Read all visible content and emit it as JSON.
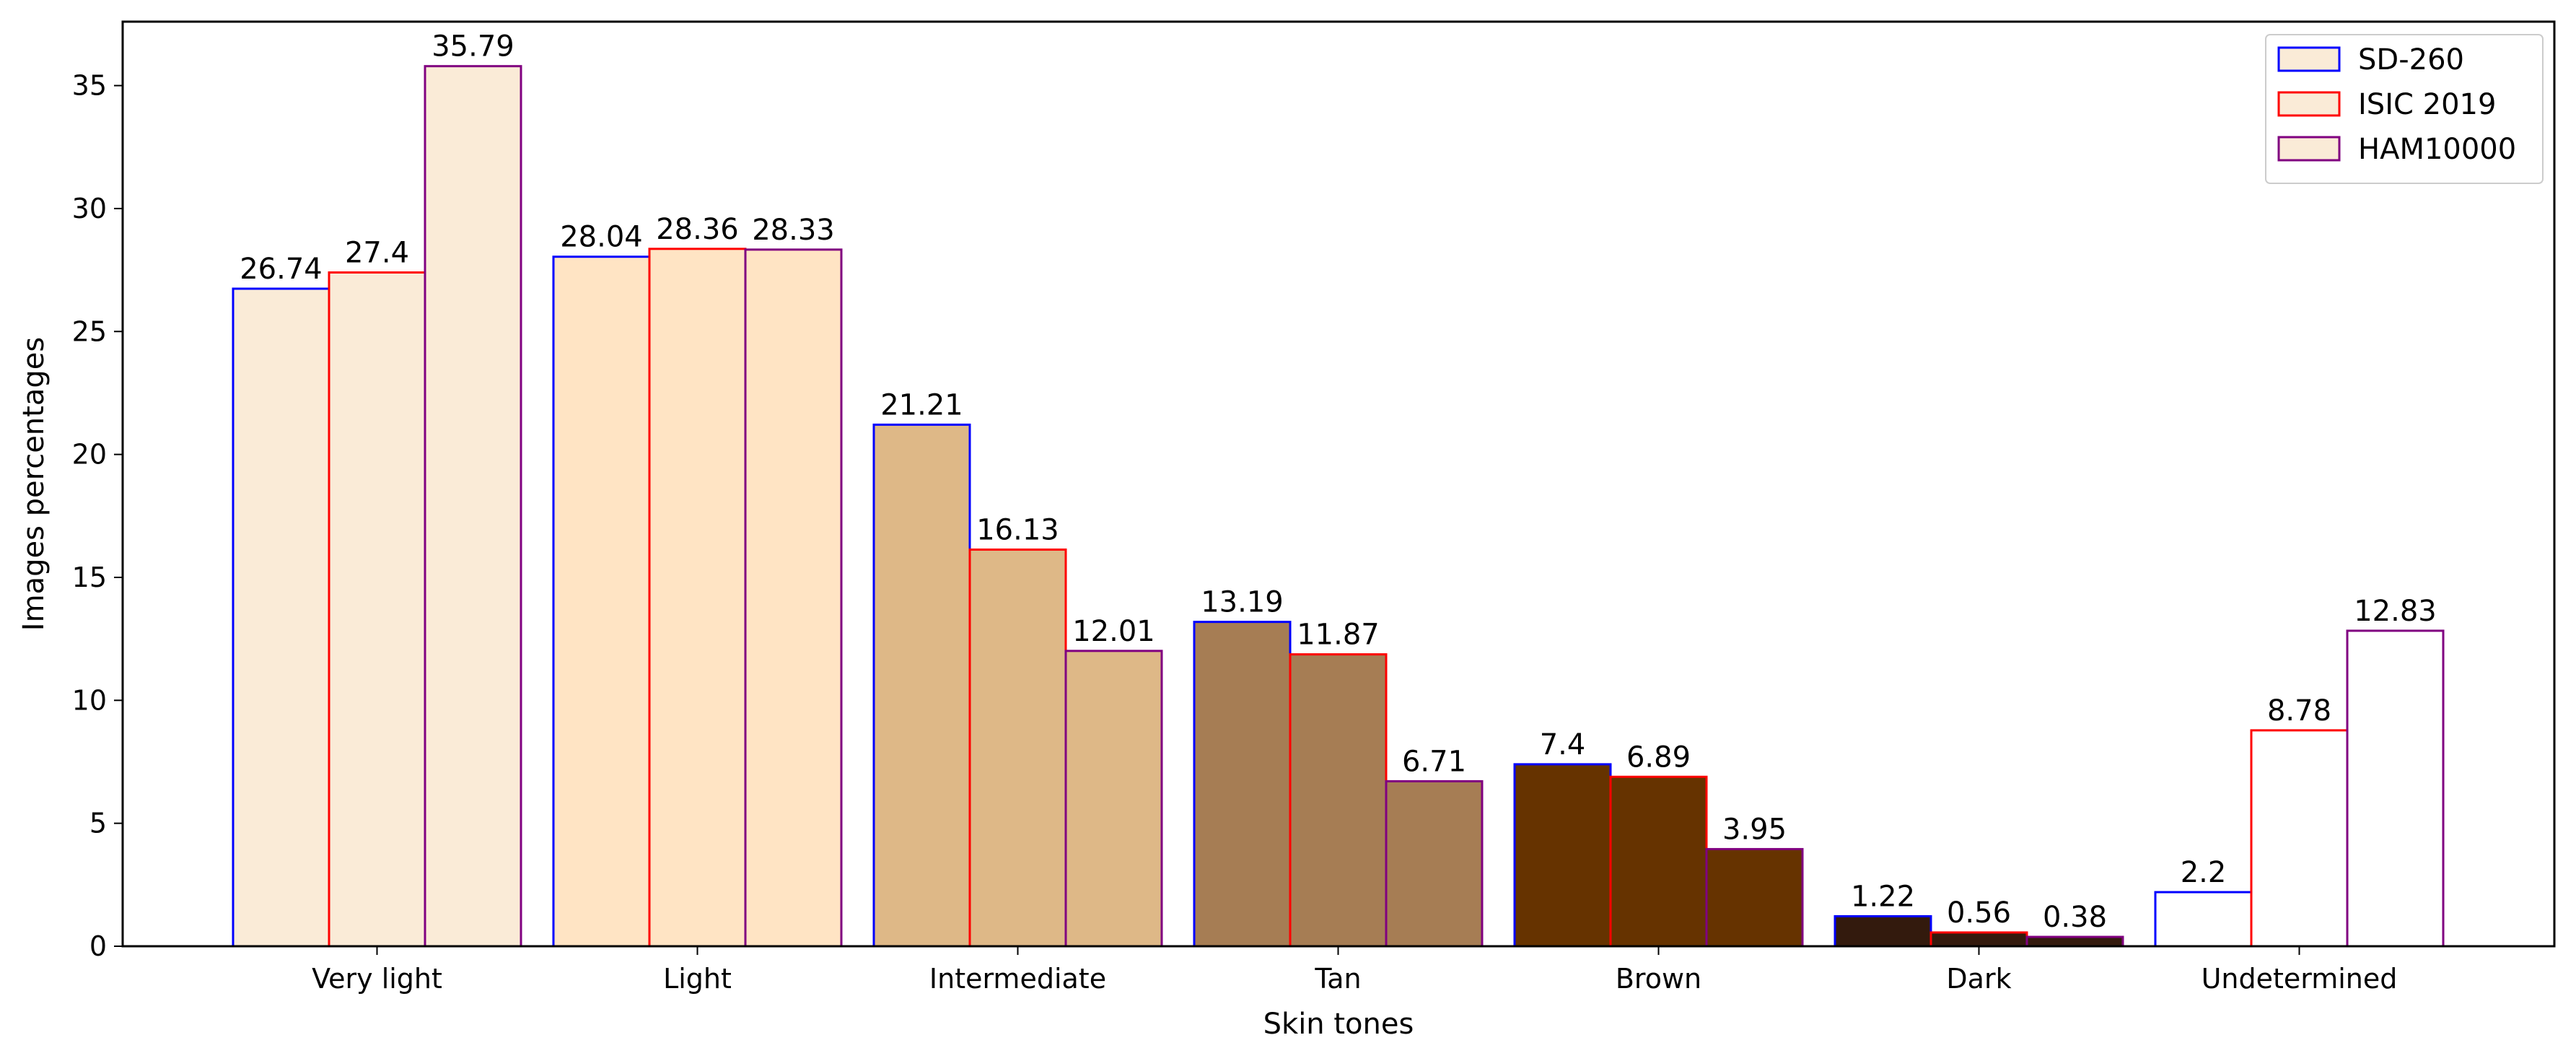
{
  "chart_data": {
    "type": "bar",
    "xlabel": "Skin tones",
    "ylabel": "Images percentages",
    "categories": [
      "Very light",
      "Light",
      "Intermediate",
      "Tan",
      "Brown",
      "Dark",
      "Undetermined"
    ],
    "category_fill_colors": [
      "#FAEBD7",
      "#FFE4C4",
      "#DEB887",
      "#A67D54",
      "#663300",
      "#331A0D",
      "#FFFFFF"
    ],
    "series": [
      {
        "name": "SD-260",
        "edge_color": "#0000FF",
        "values": [
          26.74,
          28.04,
          21.21,
          13.19,
          7.4,
          1.22,
          2.2
        ]
      },
      {
        "name": "ISIC 2019",
        "edge_color": "#FF0000",
        "values": [
          27.4,
          28.36,
          16.13,
          11.87,
          6.89,
          0.56,
          8.78
        ]
      },
      {
        "name": "HAM10000",
        "edge_color": "#800080",
        "values": [
          35.79,
          28.33,
          12.01,
          6.71,
          3.95,
          0.38,
          12.83
        ]
      }
    ],
    "ylim": [
      0,
      37.6
    ],
    "yticks": [
      0,
      5,
      10,
      15,
      20,
      25,
      30,
      35
    ],
    "grid": false,
    "legend": {
      "placement": "top-right",
      "swatch_fill": "#FAEBD7"
    }
  }
}
